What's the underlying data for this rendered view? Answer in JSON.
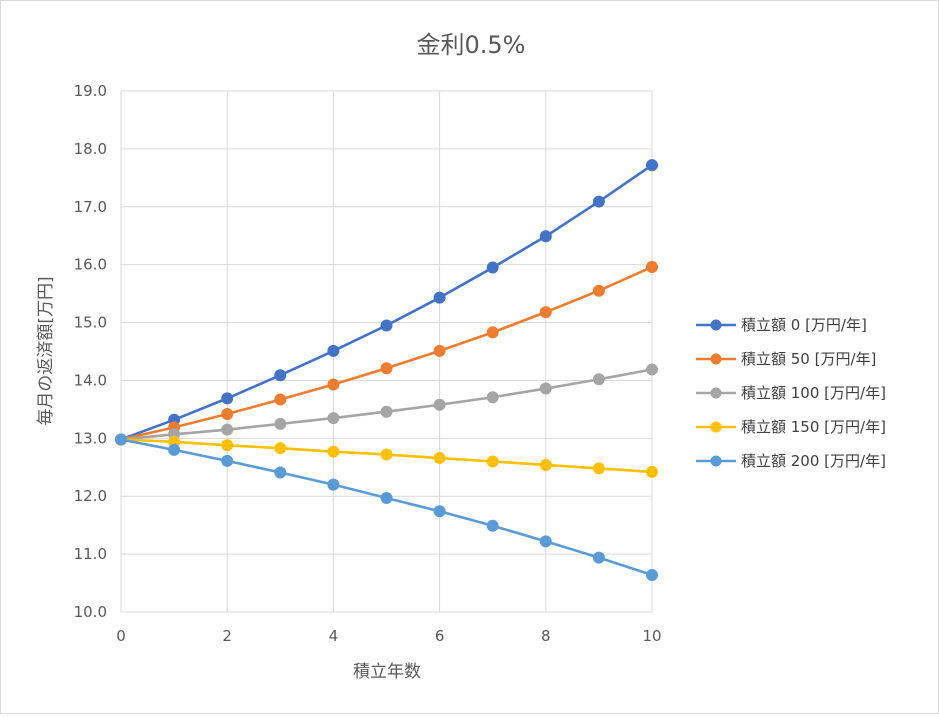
{
  "chart_data": {
    "type": "line",
    "title": "金利0.5%",
    "xlabel": "積立年数",
    "ylabel": "毎月の返済額[万円]",
    "x": [
      0,
      1,
      2,
      3,
      4,
      5,
      6,
      7,
      8,
      9,
      10
    ],
    "xlim": [
      0,
      10
    ],
    "ylim": [
      10.0,
      19.0
    ],
    "x_ticks": [
      "0",
      "2",
      "4",
      "6",
      "8",
      "10"
    ],
    "y_ticks": [
      "10.0",
      "11.0",
      "12.0",
      "13.0",
      "14.0",
      "15.0",
      "16.0",
      "17.0",
      "18.0",
      "19.0"
    ],
    "grid": true,
    "legend_position": "right",
    "series": [
      {
        "name": "積立額 0 [万円/年]",
        "color": "#4472C4",
        "values": [
          12.98,
          13.32,
          13.69,
          14.09,
          14.51,
          14.95,
          15.43,
          15.95,
          16.49,
          17.09,
          17.72
        ]
      },
      {
        "name": "積立額 50 [万円/年]",
        "color": "#ED7D31",
        "values": [
          12.98,
          13.19,
          13.42,
          13.67,
          13.93,
          14.21,
          14.51,
          14.83,
          15.18,
          15.55,
          15.96
        ]
      },
      {
        "name": "積立額 100 [万円/年]",
        "color": "#A5A5A5",
        "values": [
          12.98,
          13.07,
          13.15,
          13.25,
          13.35,
          13.46,
          13.58,
          13.71,
          13.86,
          14.02,
          14.19
        ]
      },
      {
        "name": "積立額 150 [万円/年]",
        "color": "#FFC000",
        "values": [
          12.98,
          12.94,
          12.88,
          12.83,
          12.77,
          12.72,
          12.66,
          12.6,
          12.54,
          12.48,
          12.42
        ]
      },
      {
        "name": "積立額 200 [万円/年]",
        "color": "#5B9BD5",
        "values": [
          12.98,
          12.8,
          12.61,
          12.41,
          12.2,
          11.97,
          11.74,
          11.49,
          11.22,
          10.94,
          10.64
        ]
      }
    ]
  }
}
